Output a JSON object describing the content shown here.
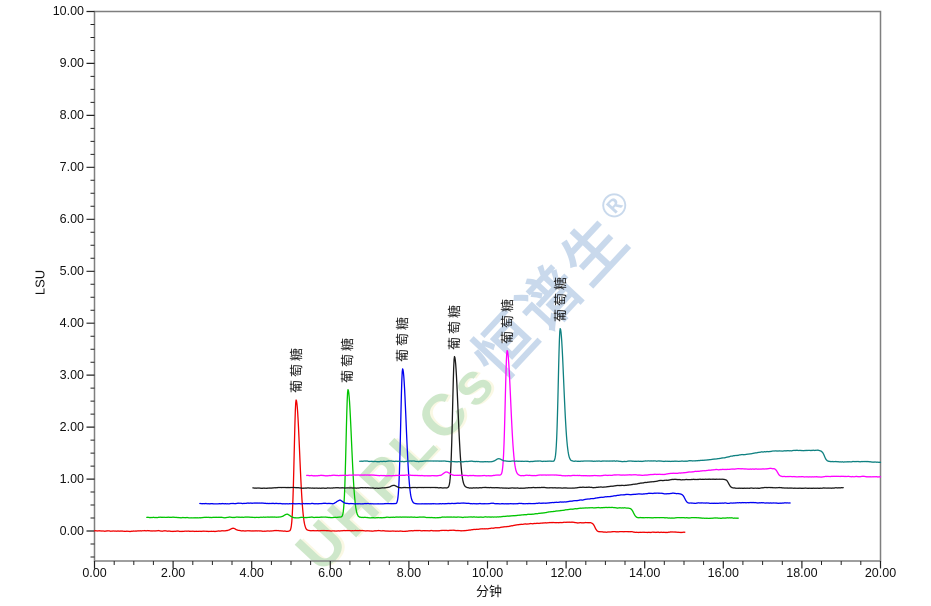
{
  "page": {
    "background": "#ffffff"
  },
  "watermark": {
    "latin": "UHPLCs",
    "cjk": "恒谱生",
    "registered": "®",
    "latin_color": "#9fd096",
    "cjk_color": "#9dbbdd"
  },
  "chart_data": {
    "type": "line",
    "title": "",
    "xlabel": "分钟",
    "ylabel": "LSU",
    "xlim": [
      0,
      20
    ],
    "ylim": [
      -0.58,
      10
    ],
    "x_tick_step": 2,
    "x_minor_step": 0.5,
    "y_tick_step": 1,
    "y_minor_step": 0.25,
    "grid": false,
    "legend": false,
    "frame_color": "#7f7f7f",
    "tick_color": "#222222",
    "x_tick_labels": [
      "0.00",
      "2.00",
      "4.00",
      "6.00",
      "8.00",
      "10.00",
      "12.00",
      "14.00",
      "16.00",
      "18.00",
      "20.00"
    ],
    "y_tick_labels": [
      "0.00",
      "1.00",
      "2.00",
      "3.00",
      "4.00",
      "5.00",
      "6.00",
      "7.00",
      "8.00",
      "9.00",
      "10.00"
    ],
    "series": [
      {
        "name": "red",
        "color": "#f00000",
        "start": 0.0,
        "end": 15.02,
        "baseline": 0.0,
        "bump_time": 3.52,
        "bump_height": 0.055,
        "peak_time": 5.13,
        "peak_height": 2.52,
        "apex_value": 2.52,
        "hump_height": 0.165,
        "step_time": 12.73,
        "tail_offset": -0.02,
        "peak_label": "葡萄糖"
      },
      {
        "name": "green",
        "color": "#00c400",
        "start": 1.33,
        "end": 16.38,
        "baseline": 0.26,
        "bump_time": 4.9,
        "bump_height": 0.06,
        "peak_time": 6.45,
        "peak_height": 2.46,
        "apex_value": 2.72,
        "hump_height": 0.19,
        "step_time": 13.72,
        "tail_offset": -0.01,
        "peak_label": "葡萄糖"
      },
      {
        "name": "blue",
        "color": "#0000f0",
        "start": 2.68,
        "end": 17.7,
        "baseline": 0.53,
        "bump_time": 6.24,
        "bump_height": 0.065,
        "peak_time": 7.84,
        "peak_height": 2.59,
        "apex_value": 3.12,
        "hump_height": 0.195,
        "step_time": 15.02,
        "tail_offset": 0.01,
        "peak_label": "葡萄糖"
      },
      {
        "name": "black",
        "color": "#1a1a1a",
        "start": 4.03,
        "end": 19.05,
        "baseline": 0.83,
        "bump_time": 7.62,
        "bump_height": 0.05,
        "peak_time": 9.16,
        "peak_height": 2.52,
        "apex_value": 3.35,
        "hump_height": 0.175,
        "step_time": 16.14,
        "tail_offset": 0.0,
        "peak_label": "葡萄糖"
      },
      {
        "name": "magenta",
        "color": "#ff00ff",
        "start": 5.4,
        "end": 20.0,
        "baseline": 1.07,
        "bump_time": 8.96,
        "bump_height": 0.06,
        "peak_time": 10.5,
        "peak_height": 2.4,
        "apex_value": 3.47,
        "hump_height": 0.13,
        "step_time": 17.38,
        "tail_offset": -0.025,
        "peak_label": "葡萄糖"
      },
      {
        "name": "teal",
        "color": "#0e8080",
        "start": 6.75,
        "end": 20.0,
        "baseline": 1.34,
        "bump_time": 10.28,
        "bump_height": 0.055,
        "peak_time": 11.85,
        "peak_height": 2.55,
        "apex_value": 3.89,
        "hump_height": 0.21,
        "step_time": 18.57,
        "tail_offset": -0.01,
        "peak_label": "葡萄糖"
      }
    ]
  }
}
